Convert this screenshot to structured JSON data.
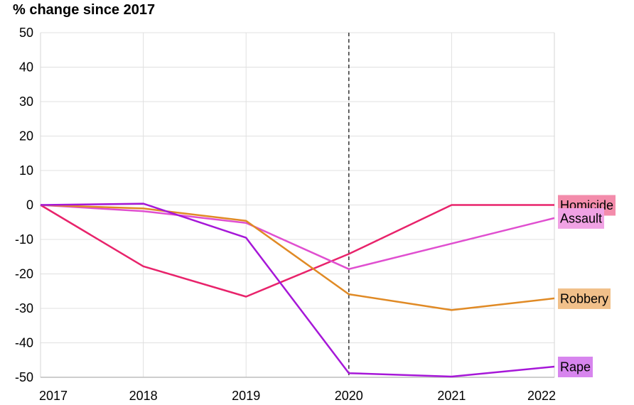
{
  "chart_data": {
    "type": "line",
    "title": "% change since 2017",
    "xlabel": "",
    "ylabel": "",
    "x": [
      2017,
      2018,
      2019,
      2020,
      2021,
      2022
    ],
    "xlim": [
      2017,
      2022
    ],
    "ylim": [
      -50,
      50
    ],
    "yticks": [
      50,
      40,
      30,
      20,
      10,
      0,
      -10,
      -20,
      -30,
      -40,
      -50
    ],
    "grid": true,
    "reference_line": {
      "x": 2020,
      "style": "dashed"
    },
    "legend": "inline-right",
    "series": [
      {
        "name": "Homicide",
        "color": "#e8236b",
        "label_bg": "#f38cab",
        "values": [
          0,
          -17.8,
          -26.6,
          -14.2,
          0,
          0
        ]
      },
      {
        "name": "Assault",
        "color": "#e04fd0",
        "label_bg": "#f0a2e4",
        "values": [
          0,
          -1.8,
          -5.2,
          -18.6,
          -11.2,
          -3.8
        ]
      },
      {
        "name": "Robbery",
        "color": "#e08a25",
        "label_bg": "#f1c08a",
        "values": [
          0,
          -1.0,
          -4.6,
          -25.9,
          -30.5,
          -27.1
        ]
      },
      {
        "name": "Rape",
        "color": "#a617d8",
        "label_bg": "#d785ee",
        "values": [
          0,
          0.4,
          -9.5,
          -48.8,
          -49.8,
          -46.9
        ]
      }
    ]
  }
}
